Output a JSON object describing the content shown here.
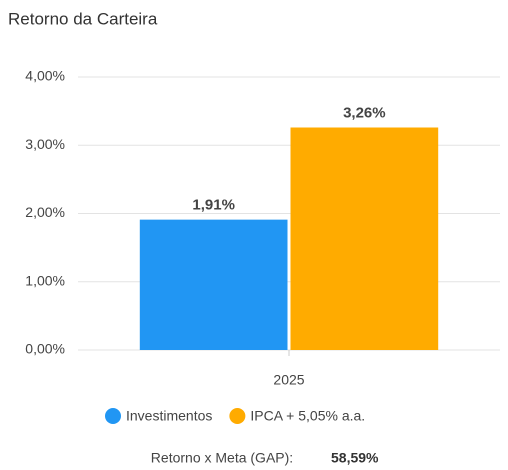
{
  "chart_data": {
    "type": "bar",
    "title": "Retorno da Carteira",
    "categories": [
      "2025"
    ],
    "series": [
      {
        "name": "Investimentos",
        "color": "#2196f3",
        "values": [
          1.91
        ],
        "value_labels": [
          "1,91%"
        ]
      },
      {
        "name": "IPCA + 5,05% a.a.",
        "color": "#ffab00",
        "values": [
          3.26
        ],
        "value_labels": [
          "3,26%"
        ]
      }
    ],
    "ylim": [
      0,
      4
    ],
    "yticks": [
      {
        "value": 0,
        "label": "0,00%"
      },
      {
        "value": 1,
        "label": "1,00%"
      },
      {
        "value": 2,
        "label": "2,00%"
      },
      {
        "value": 3,
        "label": "3,00%"
      },
      {
        "value": 4,
        "label": "4,00%"
      }
    ],
    "grid": true
  },
  "footer": {
    "label": "Retorno x Meta (GAP):",
    "value": "58,59%"
  }
}
